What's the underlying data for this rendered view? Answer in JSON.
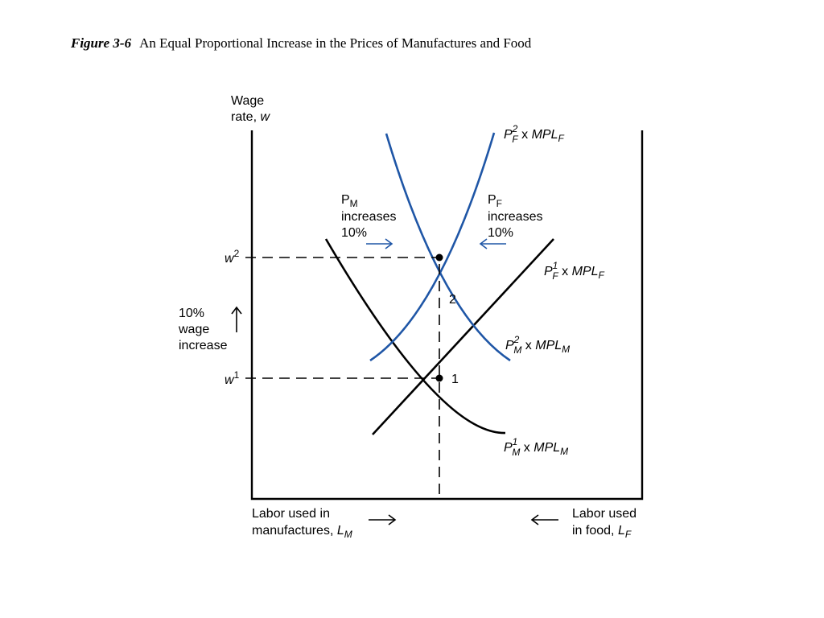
{
  "title": {
    "figure_number": "Figure 3-6",
    "caption": "An Equal Proportional Increase in the Prices of Manufactures and Food"
  },
  "axes": {
    "y_label_line1": "Wage",
    "y_label_line2_text": "rate, ",
    "y_label_line2_var": "w",
    "x_left_line1": "Labor used in",
    "x_left_line2_text": "manufactures, ",
    "x_left_var": "L",
    "x_left_sub": "M",
    "x_right_line1": "Labor used",
    "x_right_line2_text": "in food, ",
    "x_right_var": "L",
    "x_right_sub": "F"
  },
  "wage_levels": {
    "w2_var": "w",
    "w2_sup": "2",
    "w1_var": "w",
    "w1_sup": "1"
  },
  "wage_increase": {
    "line1": "10%",
    "line2": "wage",
    "line3": "increase"
  },
  "annotations": {
    "pm_letter": "P",
    "pm_sub": "M",
    "pm_line2": "increases",
    "pm_line3": "10%",
    "pf_letter": "P",
    "pf_sub": "F",
    "pf_line2": "increases",
    "pf_line3": "10%"
  },
  "curves": {
    "pf2": {
      "p": "P",
      "sup": "2",
      "sub": "F",
      "rest": " x ",
      "mpl": "MPL",
      "mpl_sub": "F"
    },
    "pf1": {
      "p": "P",
      "sup": "1",
      "sub": "F",
      "rest": " x ",
      "mpl": "MPL",
      "mpl_sub": "F"
    },
    "pm2": {
      "p": "P",
      "sup": "2",
      "sub": "M",
      "rest": " x ",
      "mpl": "MPL",
      "mpl_sub": "M"
    },
    "pm1": {
      "p": "P",
      "sup": "1",
      "sub": "M",
      "rest": " x ",
      "mpl": "MPL",
      "mpl_sub": "M"
    }
  },
  "points": {
    "point1": "1",
    "point2": "2"
  },
  "colors": {
    "blue_curves": "#1f56a6",
    "black_curves": "#000000"
  }
}
